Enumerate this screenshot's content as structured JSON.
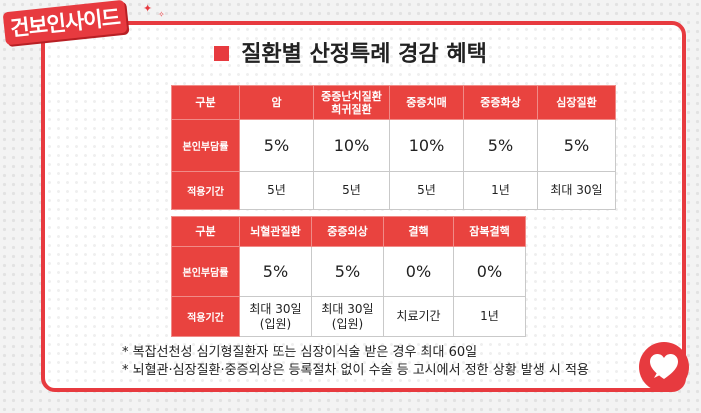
{
  "logo": {
    "text_a": "건보",
    "text_b": "인사이드"
  },
  "title": "질환별 산정특례 경감 혜택",
  "table1": {
    "headers": [
      "구분",
      "암",
      "중증난치질환\n희귀질환",
      "중증치매",
      "중증화상",
      "심장질환"
    ],
    "rows": [
      {
        "label": "본인부담률",
        "cells": [
          "5%",
          "10%",
          "10%",
          "5%",
          "5%"
        ]
      },
      {
        "label": "적용기간",
        "cells": [
          "5년",
          "5년",
          "5년",
          "1년",
          "최대 30일"
        ]
      }
    ]
  },
  "table2": {
    "headers": [
      "구분",
      "뇌혈관질환",
      "중증외상",
      "결핵",
      "잠복결핵"
    ],
    "rows": [
      {
        "label": "본인부담률",
        "cells": [
          "5%",
          "5%",
          "0%",
          "0%"
        ]
      },
      {
        "label": "적용기간",
        "cells": [
          "최대 30일\n(입원)",
          "최대 30일\n(입원)",
          "치료기간",
          "1년"
        ]
      }
    ]
  },
  "notes": [
    "* 복잡선천성 심기형질환자 또는 심장이식술 받은 경우 최대 60일",
    "* 뇌혈관·심장질환·중증외상은 등록절차 없이 수술 등 고시에서 정한 상황 발생 시 적용"
  ],
  "colors": {
    "accent": "#e73a3f",
    "header_bg": "#e9433f"
  },
  "icons": {
    "corner": "heart-chat-icon",
    "sparkle": "sparkle-icon"
  }
}
